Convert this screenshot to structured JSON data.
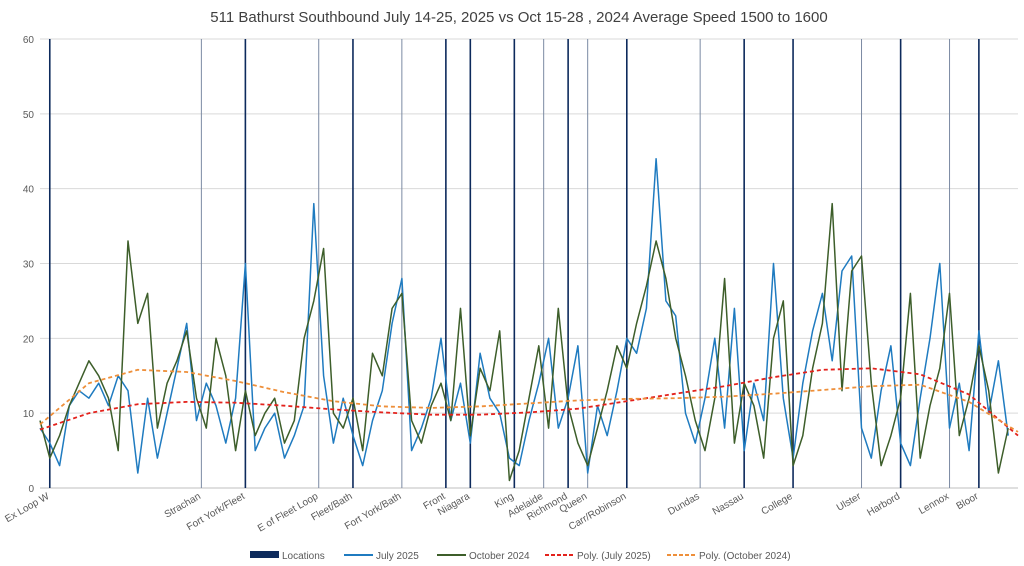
{
  "chart_data": {
    "type": "line",
    "title": "511 Bathurst Southbound July 14-25, 2025 vs Oct 15-28 , 2024 Average Speed 1500 to 1600",
    "xlabel": "",
    "ylabel": "",
    "ylim": [
      0,
      60
    ],
    "yticks": [
      0,
      10,
      20,
      30,
      40,
      50,
      60
    ],
    "xlim": [
      0,
      200
    ],
    "grid": true,
    "legend": "bottom",
    "locations_series": {
      "name": "Locations",
      "color": "#0d2a5c",
      "items": [
        {
          "label": "Ex Loop W",
          "x": 2,
          "major": true
        },
        {
          "label": "Strachan",
          "x": 33,
          "major": false
        },
        {
          "label": "Fort York/Fleet",
          "x": 42,
          "major": true
        },
        {
          "label": "E of Fleet Loop",
          "x": 57,
          "major": false
        },
        {
          "label": "Fleet/Bath",
          "x": 64,
          "major": true
        },
        {
          "label": "Fort York/Bath",
          "x": 74,
          "major": false
        },
        {
          "label": "Front",
          "x": 83,
          "major": true
        },
        {
          "label": "Niagara",
          "x": 88,
          "major": true
        },
        {
          "label": "King",
          "x": 97,
          "major": true
        },
        {
          "label": "Adelaide",
          "x": 103,
          "major": false
        },
        {
          "label": "Richmond",
          "x": 108,
          "major": true
        },
        {
          "label": "Queen",
          "x": 112,
          "major": false
        },
        {
          "label": "Carr/Robinson",
          "x": 120,
          "major": true
        },
        {
          "label": "Dundas",
          "x": 135,
          "major": false
        },
        {
          "label": "Nassau",
          "x": 144,
          "major": true
        },
        {
          "label": "College",
          "x": 154,
          "major": true
        },
        {
          "label": "Ulster",
          "x": 168,
          "major": false
        },
        {
          "label": "Harbord",
          "x": 176,
          "major": true
        },
        {
          "label": "Lennox",
          "x": 186,
          "major": false
        },
        {
          "label": "Bloor",
          "x": 192,
          "major": true
        }
      ]
    },
    "x_step": 2,
    "series": [
      {
        "name": "July 2025",
        "color": "#1f7bc0",
        "style": "solid",
        "values": [
          8,
          6,
          3,
          11,
          13,
          12,
          14,
          11,
          15,
          13,
          2,
          12,
          4,
          10,
          16,
          22,
          9,
          14,
          11,
          6,
          12,
          30,
          5,
          8,
          10,
          4,
          7,
          11,
          38,
          15,
          6,
          12,
          7,
          3,
          9,
          13,
          22,
          28,
          5,
          8,
          12,
          20,
          9,
          14,
          6,
          18,
          12,
          10,
          4,
          3,
          9,
          14,
          20,
          8,
          12,
          19,
          2,
          11,
          7,
          13,
          20,
          18,
          24,
          44,
          25,
          23,
          10,
          6,
          12,
          20,
          8,
          24,
          5,
          14,
          9,
          30,
          12,
          4,
          14,
          21,
          26,
          17,
          29,
          31,
          8,
          4,
          13,
          19,
          6,
          3,
          12,
          20,
          30,
          8,
          14,
          5,
          21,
          10,
          17,
          7
        ]
      },
      {
        "name": "October 2024",
        "color": "#3d5e2a",
        "style": "solid",
        "values": [
          9,
          4,
          7,
          11,
          14,
          17,
          15,
          12,
          5,
          33,
          22,
          26,
          8,
          14,
          17,
          21,
          12,
          8,
          20,
          15,
          5,
          13,
          7,
          10,
          12,
          6,
          9,
          20,
          25,
          32,
          10,
          8,
          12,
          5,
          18,
          15,
          24,
          26,
          9,
          6,
          11,
          14,
          9,
          24,
          7,
          16,
          13,
          21,
          1,
          5,
          12,
          19,
          8,
          24,
          11,
          6,
          3,
          8,
          13,
          19,
          16,
          22,
          27,
          33,
          28,
          20,
          15,
          9,
          5,
          12,
          28,
          6,
          14,
          11,
          4,
          20,
          25,
          3,
          7,
          16,
          22,
          38,
          13,
          29,
          31,
          14,
          3,
          7,
          12,
          26,
          4,
          11,
          16,
          26,
          7,
          12,
          19,
          13,
          2,
          8
        ]
      },
      {
        "name": "Poly. (July 2025)",
        "color": "#e3221c",
        "style": "dashed",
        "x_every": 10,
        "values": [
          7.8,
          10,
          11.2,
          11.5,
          11.4,
          11,
          10.5,
          10.1,
          9.8,
          9.8,
          10.1,
          10.6,
          11.6,
          12.6,
          13.6,
          14.8,
          15.8,
          16.0,
          15.2,
          12.5,
          7
        ]
      },
      {
        "name": "Poly. (October 2024)",
        "color": "#ee8f3a",
        "style": "dashed",
        "x_every": 10,
        "values": [
          8.5,
          14,
          15.8,
          15.5,
          14.3,
          12.8,
          11.6,
          10.9,
          10.7,
          10.9,
          11.3,
          11.7,
          11.9,
          12.0,
          12.2,
          12.6,
          13.1,
          13.6,
          13.8,
          11.5,
          7.5
        ]
      }
    ]
  }
}
